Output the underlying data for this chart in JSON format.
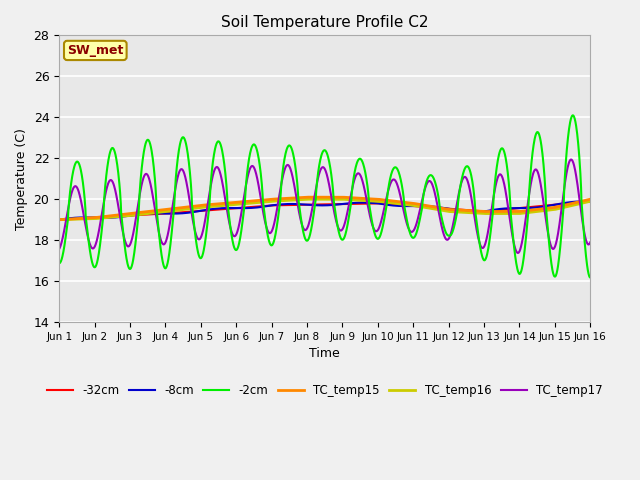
{
  "title": "Soil Temperature Profile C2",
  "xlabel": "Time",
  "ylabel": "Temperature (C)",
  "ylim": [
    14,
    28
  ],
  "yticks": [
    14,
    16,
    18,
    20,
    22,
    24,
    26,
    28
  ],
  "xlim": [
    0,
    15
  ],
  "xtick_labels": [
    "Jun 1",
    "Jun 2",
    "Jun 3",
    "Jun 4",
    "Jun 5",
    "Jun 6",
    "Jun 7",
    "Jun 8",
    "Jun 9",
    "Jun 10",
    "Jun 11",
    "Jun 12",
    "Jun 13",
    "Jun 14",
    "Jun 15",
    "Jun 16"
  ],
  "bg_outer": "#f0f0f0",
  "bg_inner": "#e8e8e8",
  "grid_color": "white",
  "annotation_text": "SW_met",
  "annotation_color": "#8b0000",
  "annotation_bg": "#ffffaa",
  "annotation_border": "#aa8800",
  "series": {
    "m32cm": {
      "label": "-32cm",
      "color": "#ff0000",
      "lw": 1.5
    },
    "m8cm": {
      "label": "-8cm",
      "color": "#0000cc",
      "lw": 1.5
    },
    "m2cm": {
      "label": "-2cm",
      "color": "#00ee00",
      "lw": 1.5
    },
    "TC15": {
      "label": "TC_temp15",
      "color": "#ff8800",
      "lw": 2.0
    },
    "TC16": {
      "label": "TC_temp16",
      "color": "#cccc00",
      "lw": 2.0
    },
    "TC17": {
      "label": "TC_temp17",
      "color": "#9900bb",
      "lw": 1.5
    }
  }
}
